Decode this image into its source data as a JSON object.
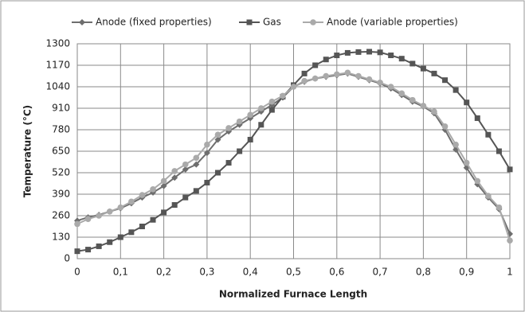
{
  "chart_data": {
    "type": "line",
    "xlabel": "Normalized Furnace Length",
    "ylabel": "Temperature (°C)",
    "x": [
      0,
      0.025,
      0.05,
      0.075,
      0.1,
      0.125,
      0.15,
      0.175,
      0.2,
      0.225,
      0.25,
      0.275,
      0.3,
      0.325,
      0.35,
      0.375,
      0.4,
      0.425,
      0.45,
      0.475,
      0.5,
      0.525,
      0.55,
      0.575,
      0.6,
      0.625,
      0.65,
      0.675,
      0.7,
      0.725,
      0.75,
      0.775,
      0.8,
      0.825,
      0.85,
      0.875,
      0.9,
      0.925,
      0.95,
      0.975,
      1
    ],
    "series": [
      {
        "name": "Anode (fixed properties)",
        "color": "#6e6e6e",
        "marker": "diamond",
        "values": [
          230,
          250,
          265,
          285,
          305,
          335,
          370,
          400,
          440,
          490,
          540,
          570,
          640,
          720,
          770,
          810,
          850,
          890,
          930,
          975,
          1040,
          1070,
          1090,
          1100,
          1110,
          1120,
          1100,
          1080,
          1060,
          1030,
          990,
          950,
          920,
          880,
          780,
          660,
          550,
          450,
          370,
          300,
          150
        ]
      },
      {
        "name": "Gas",
        "color": "#555555",
        "marker": "square",
        "values": [
          45,
          55,
          75,
          100,
          130,
          160,
          195,
          235,
          280,
          325,
          370,
          410,
          460,
          520,
          580,
          650,
          720,
          810,
          900,
          980,
          1050,
          1120,
          1170,
          1205,
          1230,
          1245,
          1250,
          1252,
          1248,
          1230,
          1210,
          1180,
          1150,
          1120,
          1080,
          1020,
          945,
          850,
          750,
          650,
          540
        ]
      },
      {
        "name": "Anode (variable properties)",
        "color": "#aaaaaa",
        "marker": "circle",
        "values": [
          210,
          240,
          260,
          285,
          310,
          345,
          385,
          420,
          470,
          530,
          570,
          610,
          690,
          750,
          790,
          830,
          870,
          910,
          950,
          985,
          1040,
          1075,
          1090,
          1105,
          1115,
          1125,
          1105,
          1085,
          1065,
          1040,
          1000,
          960,
          925,
          890,
          800,
          690,
          580,
          470,
          380,
          310,
          110
        ]
      }
    ],
    "xlim": [
      0,
      1
    ],
    "xticks": [
      0,
      {
        "value": 0.1,
        "label": "0,1"
      },
      {
        "value": 0.2,
        "label": "0,2"
      },
      {
        "value": 0.3,
        "label": "0,3"
      },
      {
        "value": 0.4,
        "label": "0,4"
      },
      {
        "value": 0.5,
        "label": "0,5"
      },
      {
        "value": 0.6,
        "label": "0,6"
      },
      {
        "value": 0.7,
        "label": "0,7"
      },
      {
        "value": 0.8,
        "label": "0,8"
      },
      {
        "value": 0.9,
        "label": "0,9"
      },
      1
    ],
    "ylim": [
      0,
      1300
    ],
    "yticks": [
      0,
      130,
      260,
      390,
      520,
      650,
      780,
      910,
      1040,
      1170,
      1300
    ],
    "grid": true,
    "legend": "top"
  }
}
